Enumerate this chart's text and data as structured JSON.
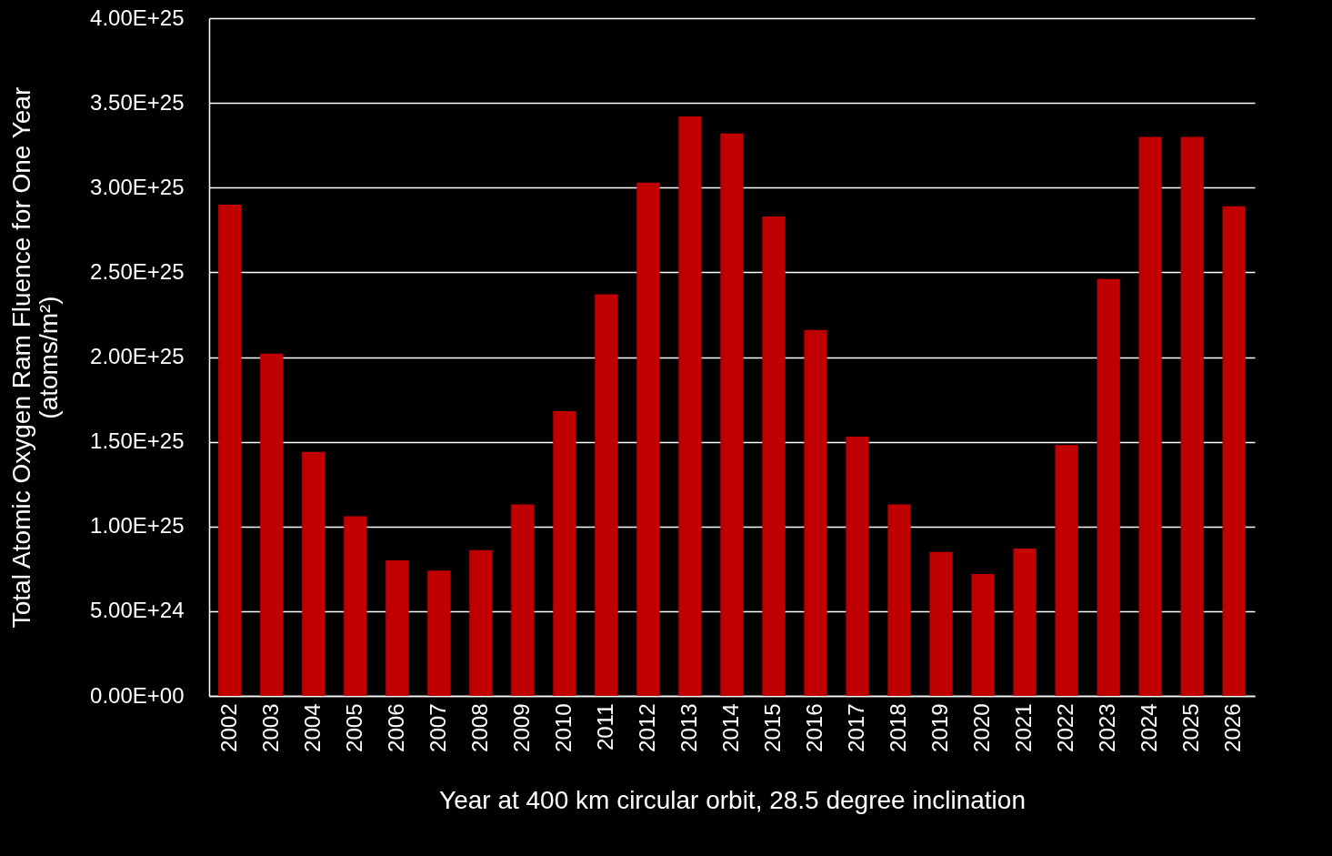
{
  "chart_data": {
    "type": "bar",
    "xlabel": "Year at 400 km circular orbit, 28.5 degree inclination",
    "ylabel": "Total Atomic Oxygen Ram Fluence for One Year\n(atoms/m²)",
    "categories": [
      "2002",
      "2003",
      "2004",
      "2005",
      "2006",
      "2007",
      "2008",
      "2009",
      "2010",
      "2011",
      "2012",
      "2013",
      "2014",
      "2015",
      "2016",
      "2017",
      "2018",
      "2019",
      "2020",
      "2021",
      "2022",
      "2023",
      "2024",
      "2025",
      "2026"
    ],
    "values": [
      2.9e+25,
      2.02e+25,
      1.44e+25,
      1.06e+25,
      8e+24,
      7.4e+24,
      8.6e+24,
      1.13e+25,
      1.68e+25,
      2.37e+25,
      3.03e+25,
      3.42e+25,
      3.32e+25,
      2.83e+25,
      2.16e+25,
      1.53e+25,
      1.13e+25,
      8.5e+24,
      7.2e+24,
      8.7e+24,
      1.48e+25,
      2.46e+25,
      3.3e+25,
      3.3e+25,
      2.89e+25
    ],
    "color": "#c00000",
    "ylim": [
      0,
      4e+25
    ],
    "yticks": [
      {
        "value": 0,
        "label": "0.00E+00"
      },
      {
        "value": 5e+24,
        "label": "5.00E+24"
      },
      {
        "value": 1e+25,
        "label": "1.00E+25"
      },
      {
        "value": 1.5e+25,
        "label": "1.50E+25"
      },
      {
        "value": 2e+25,
        "label": "2.00E+25"
      },
      {
        "value": 2.5e+25,
        "label": "2.50E+25"
      },
      {
        "value": 3e+25,
        "label": "3.00E+25"
      },
      {
        "value": 3.5e+25,
        "label": "3.50E+25"
      },
      {
        "value": 4e+25,
        "label": "4.00E+25"
      }
    ],
    "grid": "y"
  }
}
